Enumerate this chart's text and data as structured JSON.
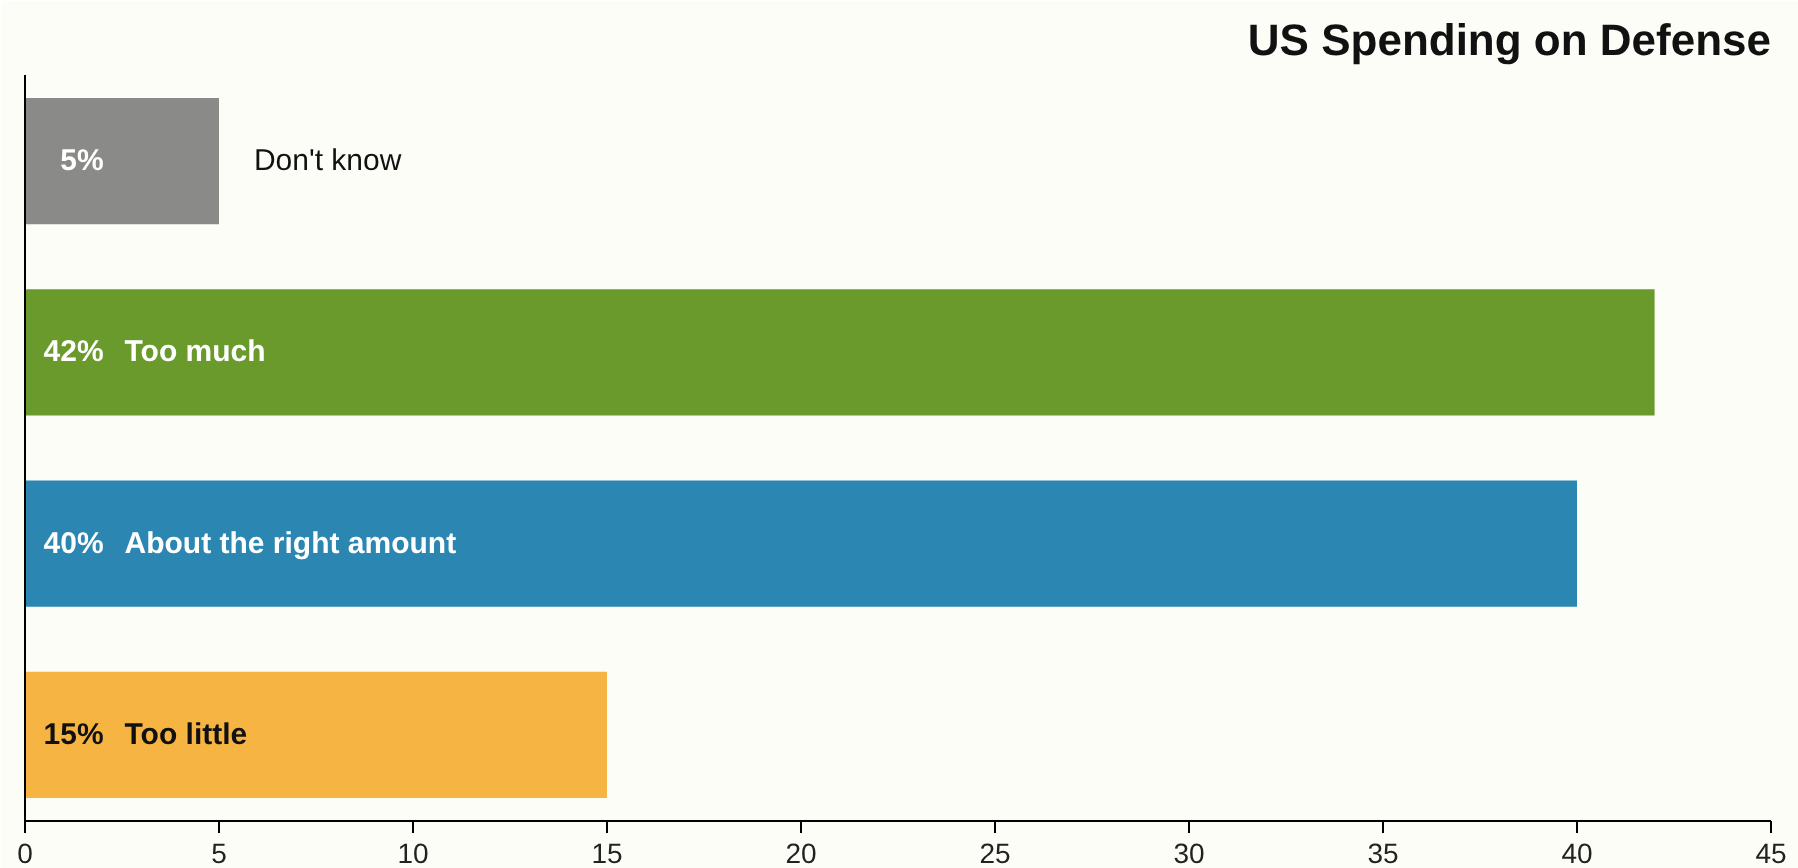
{
  "chart_data": {
    "type": "bar",
    "orientation": "horizontal",
    "title": "US Spending on Defense",
    "categories": [
      "Don't know",
      "Too much",
      "About the right amount",
      "Too little"
    ],
    "values": [
      5,
      42,
      40,
      15
    ],
    "colors": [
      "#8a8a88",
      "#6a9a2c",
      "#2b87b2",
      "#f6b443"
    ],
    "value_labels": [
      "5%",
      "42%",
      "40%",
      "15%"
    ],
    "xlim": [
      0,
      45
    ],
    "xticks": [
      0,
      5,
      10,
      15,
      20,
      25,
      30,
      35,
      40,
      45
    ],
    "grid": false
  }
}
